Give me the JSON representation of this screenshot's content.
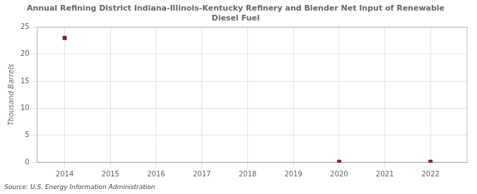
{
  "chart_data": {
    "type": "scatter",
    "title": "Annual Refining District Indiana-Illinois-Kentucky Refinery and Blender Net Input of Renewable\nDiesel Fuel",
    "y_label": "Thousand Barrels",
    "annotations": [
      "Source: U.S. Energy Information Administration"
    ],
    "x": [
      2014,
      2015,
      2016,
      2017,
      2018,
      2019,
      2020,
      2021,
      2022
    ],
    "values": [
      23,
      null,
      null,
      null,
      null,
      null,
      0.1,
      null,
      0.1
    ],
    "color": "#8b1a1a",
    "marker": "square",
    "xlim": [
      2013.4,
      2022.8
    ],
    "xticks": [
      2014,
      2015,
      2016,
      2017,
      2018,
      2019,
      2020,
      2021,
      2022
    ],
    "ylim": [
      0,
      25
    ],
    "yticks": [
      0,
      5,
      10,
      15,
      20,
      25
    ],
    "grid": true
  }
}
